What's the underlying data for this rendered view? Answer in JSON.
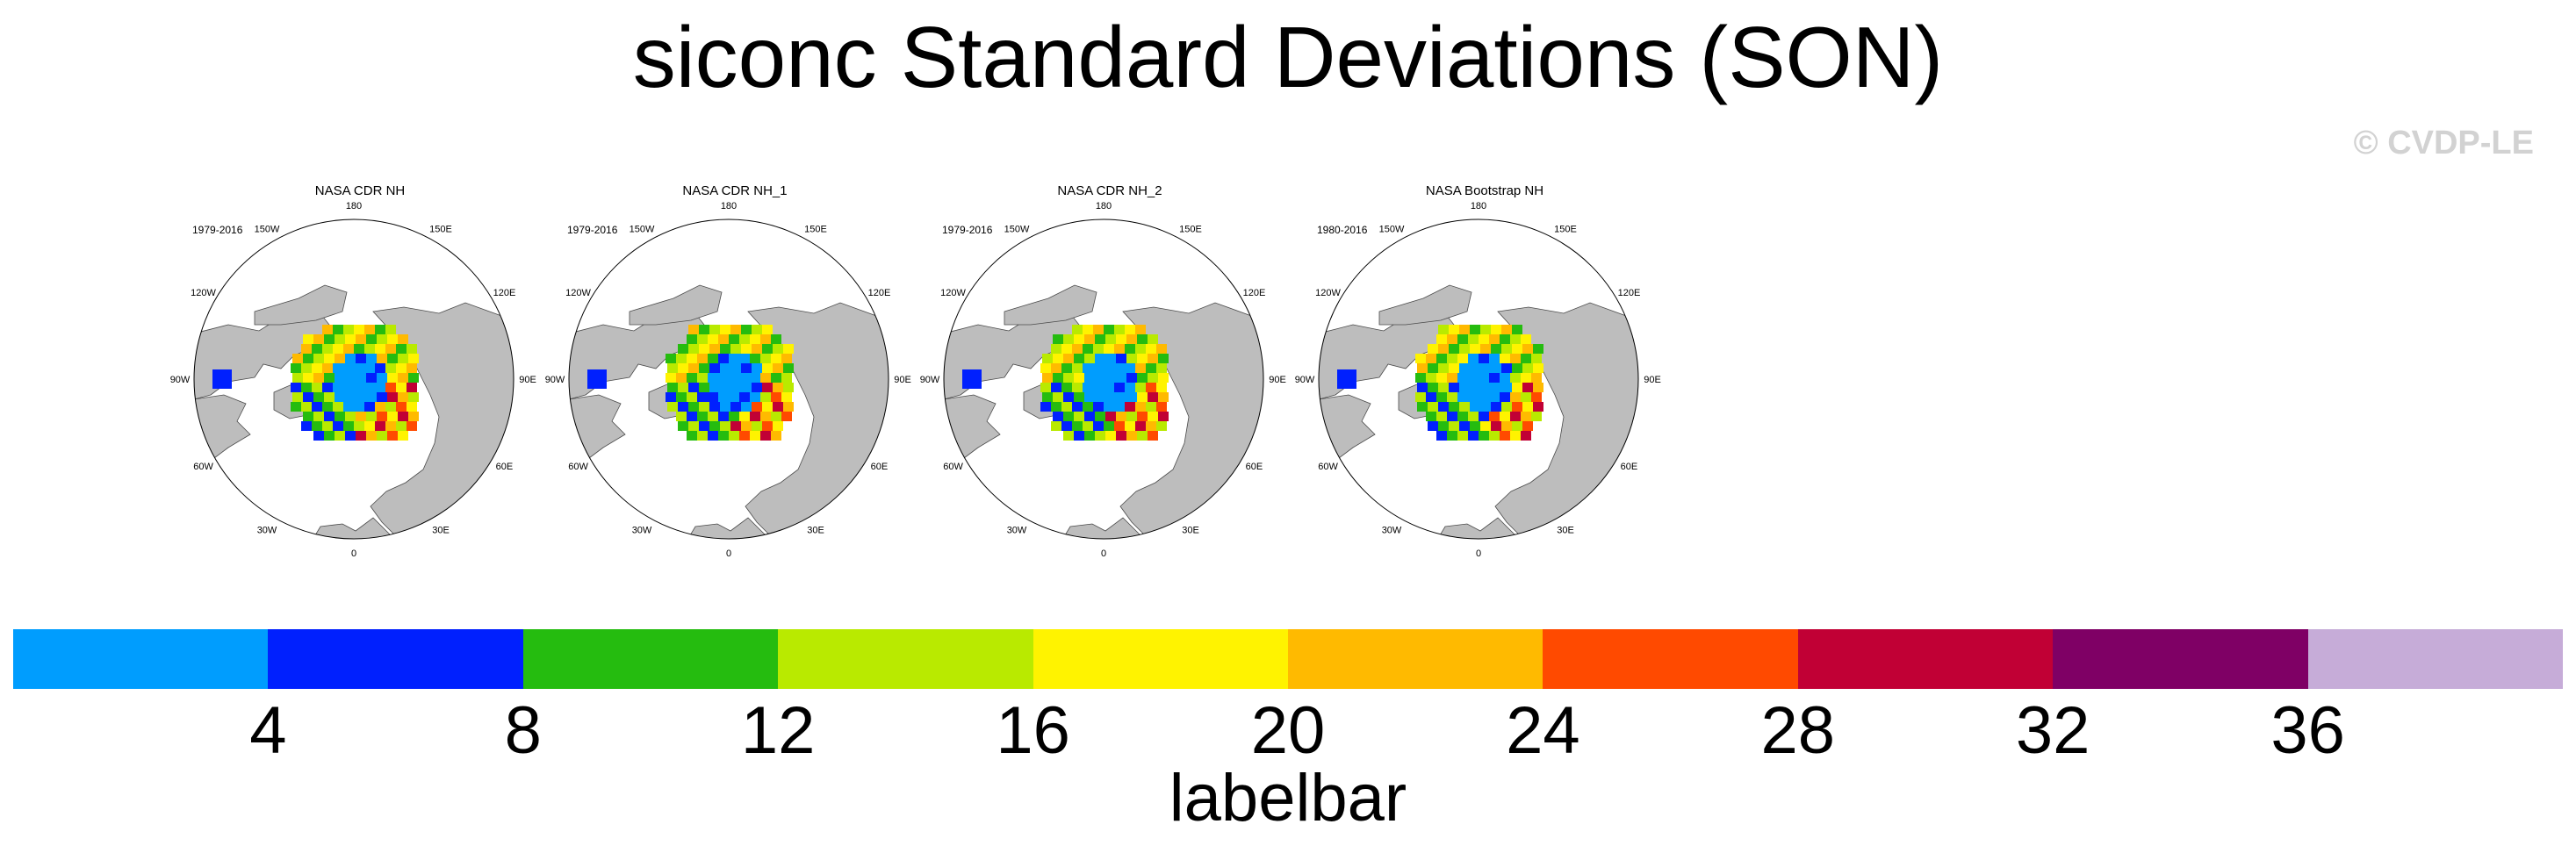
{
  "title": "siconc Standard Deviations (SON)",
  "copyright": "© CVDP-LE",
  "colors": {
    "land": "#bdbdbd",
    "coast": "#4a4a4a",
    "ocean": "#ffffff"
  },
  "longitude_labels": [
    "180",
    "150E",
    "120E",
    "90E",
    "60E",
    "30E",
    "0",
    "30W",
    "60W",
    "90W",
    "120W",
    "150W"
  ],
  "panels": [
    {
      "title": "NASA CDR NH",
      "period": "1979-2016"
    },
    {
      "title": "NASA CDR NH_1",
      "period": "1979-2016"
    },
    {
      "title": "NASA CDR NH_2",
      "period": "1979-2016"
    },
    {
      "title": "NASA Bootstrap NH",
      "period": "1980-2016"
    }
  ],
  "labelbar": {
    "colors": [
      "#009dfe",
      "#0020fe",
      "#25bc0f",
      "#b9ea00",
      "#fff300",
      "#ffba00",
      "#ff4a00",
      "#c10035",
      "#7f0065",
      "#c6acd8"
    ],
    "ticks": [
      "4",
      "8",
      "12",
      "16",
      "20",
      "24",
      "28",
      "32",
      "36"
    ],
    "label": "labelbar"
  }
}
